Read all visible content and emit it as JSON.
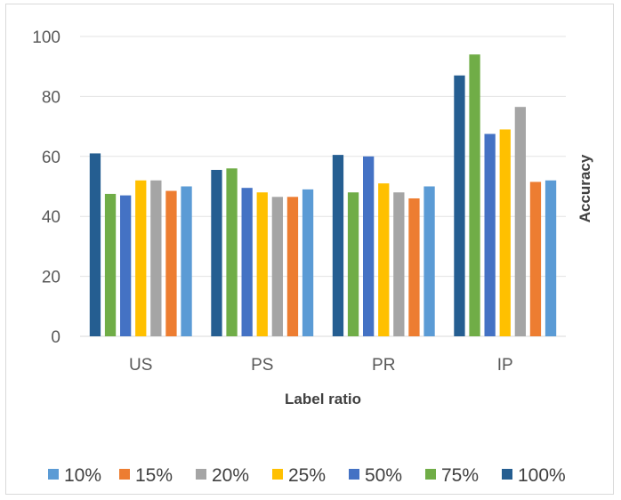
{
  "chart_data": {
    "type": "bar",
    "xlabel": "Label ratio",
    "ylabel": "Accuracy",
    "ylim": [
      0,
      100
    ],
    "yticks": [
      0,
      20,
      40,
      60,
      80,
      100
    ],
    "grid": true,
    "legend_position": "bottom",
    "categories": [
      "US",
      "PS",
      "PR",
      "IP"
    ],
    "series": [
      {
        "name": "100%",
        "color": "#255e91",
        "values": [
          61,
          55.5,
          60.5,
          87
        ]
      },
      {
        "name": "75%",
        "color": "#70ad47",
        "values": [
          47.5,
          56,
          48,
          94
        ]
      },
      {
        "name": "50%",
        "color": "#4472c4",
        "values": [
          47,
          49.5,
          60,
          67.5
        ]
      },
      {
        "name": "25%",
        "color": "#ffc000",
        "values": [
          52,
          48,
          51,
          69
        ]
      },
      {
        "name": "20%",
        "color": "#a5a5a5",
        "values": [
          52,
          46.5,
          48,
          76.5
        ]
      },
      {
        "name": "15%",
        "color": "#ed7d31",
        "values": [
          48.5,
          46.5,
          46,
          51.5
        ]
      },
      {
        "name": "10%",
        "color": "#5b9bd5",
        "values": [
          50,
          49,
          50,
          52
        ]
      }
    ],
    "legend_order": [
      "10%",
      "15%",
      "20%",
      "25%",
      "50%",
      "75%",
      "100%"
    ]
  }
}
